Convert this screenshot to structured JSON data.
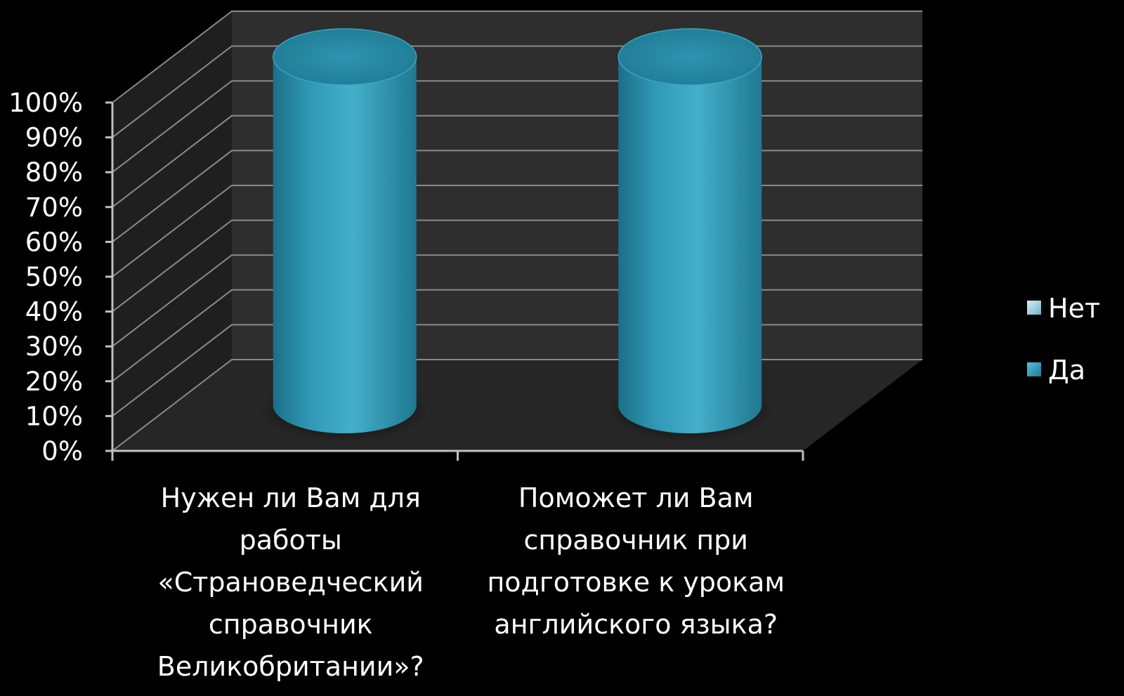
{
  "chart_data": {
    "type": "bar",
    "style": "3d-cylinder-stacked-100",
    "categories": [
      "Нужен ли Вам для работы «Страноведческий справочник Великобритании»?",
      "Поможет ли Вам справочник при подготовке к урокам английского языка?"
    ],
    "category_lines": [
      [
        "Нужен ли Вам для",
        "работы",
        "«Страноведческий",
        "справочник",
        "Великобритании»?"
      ],
      [
        "Поможет ли Вам",
        "справочник при",
        "подготовке к урокам",
        "английского языка?"
      ]
    ],
    "series": [
      {
        "name": "Нет",
        "values": [
          0,
          0
        ],
        "color": "#9fd3e6"
      },
      {
        "name": "Да",
        "values": [
          100,
          100
        ],
        "color": "#2f98b5"
      }
    ],
    "y_ticks": [
      "0%",
      "10%",
      "20%",
      "30%",
      "40%",
      "50%",
      "60%",
      "70%",
      "80%",
      "90%",
      "100%"
    ],
    "ylim": [
      0,
      100
    ],
    "grid": true,
    "legend_position": "right",
    "colors": {
      "background": "#000000",
      "back_wall": "#2e2e2e",
      "side_wall": "#1f1f1f",
      "floor": "#262626",
      "gridline": "#8a8a8a",
      "axis": "#bfbfbf",
      "text": "#ffffff"
    }
  }
}
